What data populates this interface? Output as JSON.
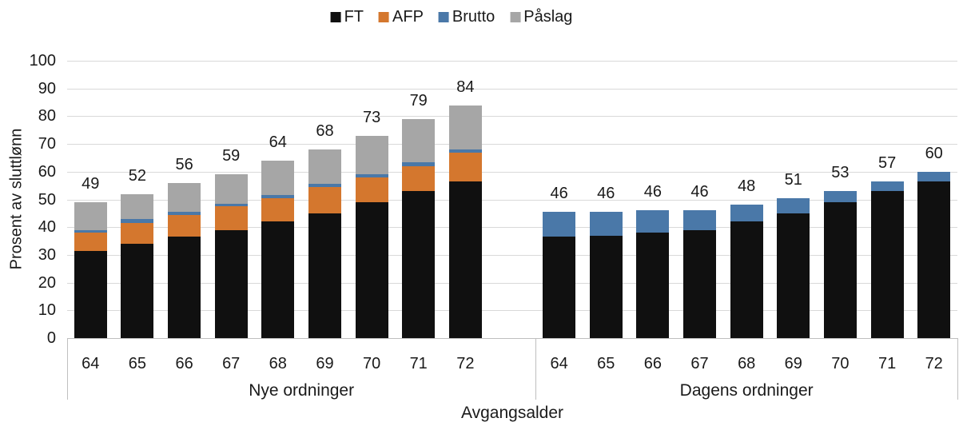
{
  "chart_data": {
    "type": "bar",
    "stacked": true,
    "title": "",
    "xlabel": "Avgangsalder",
    "ylabel": "Prosent av sluttlønn",
    "ylim": [
      0,
      100
    ],
    "yticks": [
      0,
      10,
      20,
      30,
      40,
      50,
      60,
      70,
      80,
      90,
      100
    ],
    "grid": "horizontal",
    "legend_position": "top-center",
    "legend": [
      {
        "label": "FT",
        "color": "#101010"
      },
      {
        "label": "AFP",
        "color": "#d4772e"
      },
      {
        "label": "Brutto",
        "color": "#4a78a8"
      },
      {
        "label": "Påslag",
        "color": "#a6a6a6"
      }
    ],
    "groups": [
      {
        "label": "Nye ordninger",
        "categories": [
          "64",
          "65",
          "66",
          "67",
          "68",
          "69",
          "70",
          "71",
          "72"
        ],
        "series": [
          {
            "name": "FT",
            "values": [
              31.5,
              34,
              36.5,
              39,
              42,
              45,
              49,
              53,
              56.5
            ]
          },
          {
            "name": "AFP",
            "values": [
              6.5,
              7.5,
              8,
              8.5,
              8.5,
              9.5,
              9,
              9,
              10.5
            ]
          },
          {
            "name": "Brutto",
            "values": [
              1,
              1.5,
              1,
              1,
              1,
              1,
              1,
              1.5,
              1
            ]
          },
          {
            "name": "Påslag",
            "values": [
              10,
              9,
              10.5,
              10.5,
              12.5,
              12.5,
              14,
              15.5,
              16
            ]
          }
        ],
        "bar_labels": [
          "49",
          "52",
          "56",
          "59",
          "64",
          "68",
          "73",
          "79",
          "84"
        ]
      },
      {
        "label": "Dagens ordninger",
        "categories": [
          "64",
          "65",
          "66",
          "67",
          "68",
          "69",
          "70",
          "71",
          "72"
        ],
        "series": [
          {
            "name": "FT",
            "values": [
              36.5,
              37,
              38,
              39,
              42,
              45,
              49,
              53,
              56.5
            ]
          },
          {
            "name": "Brutto",
            "values": [
              9,
              8.5,
              8,
              7,
              6,
              5.5,
              4,
              3.5,
              3.5
            ]
          }
        ],
        "bar_labels": [
          "46",
          "46",
          "46",
          "46",
          "48",
          "51",
          "53",
          "57",
          "60"
        ]
      }
    ]
  }
}
